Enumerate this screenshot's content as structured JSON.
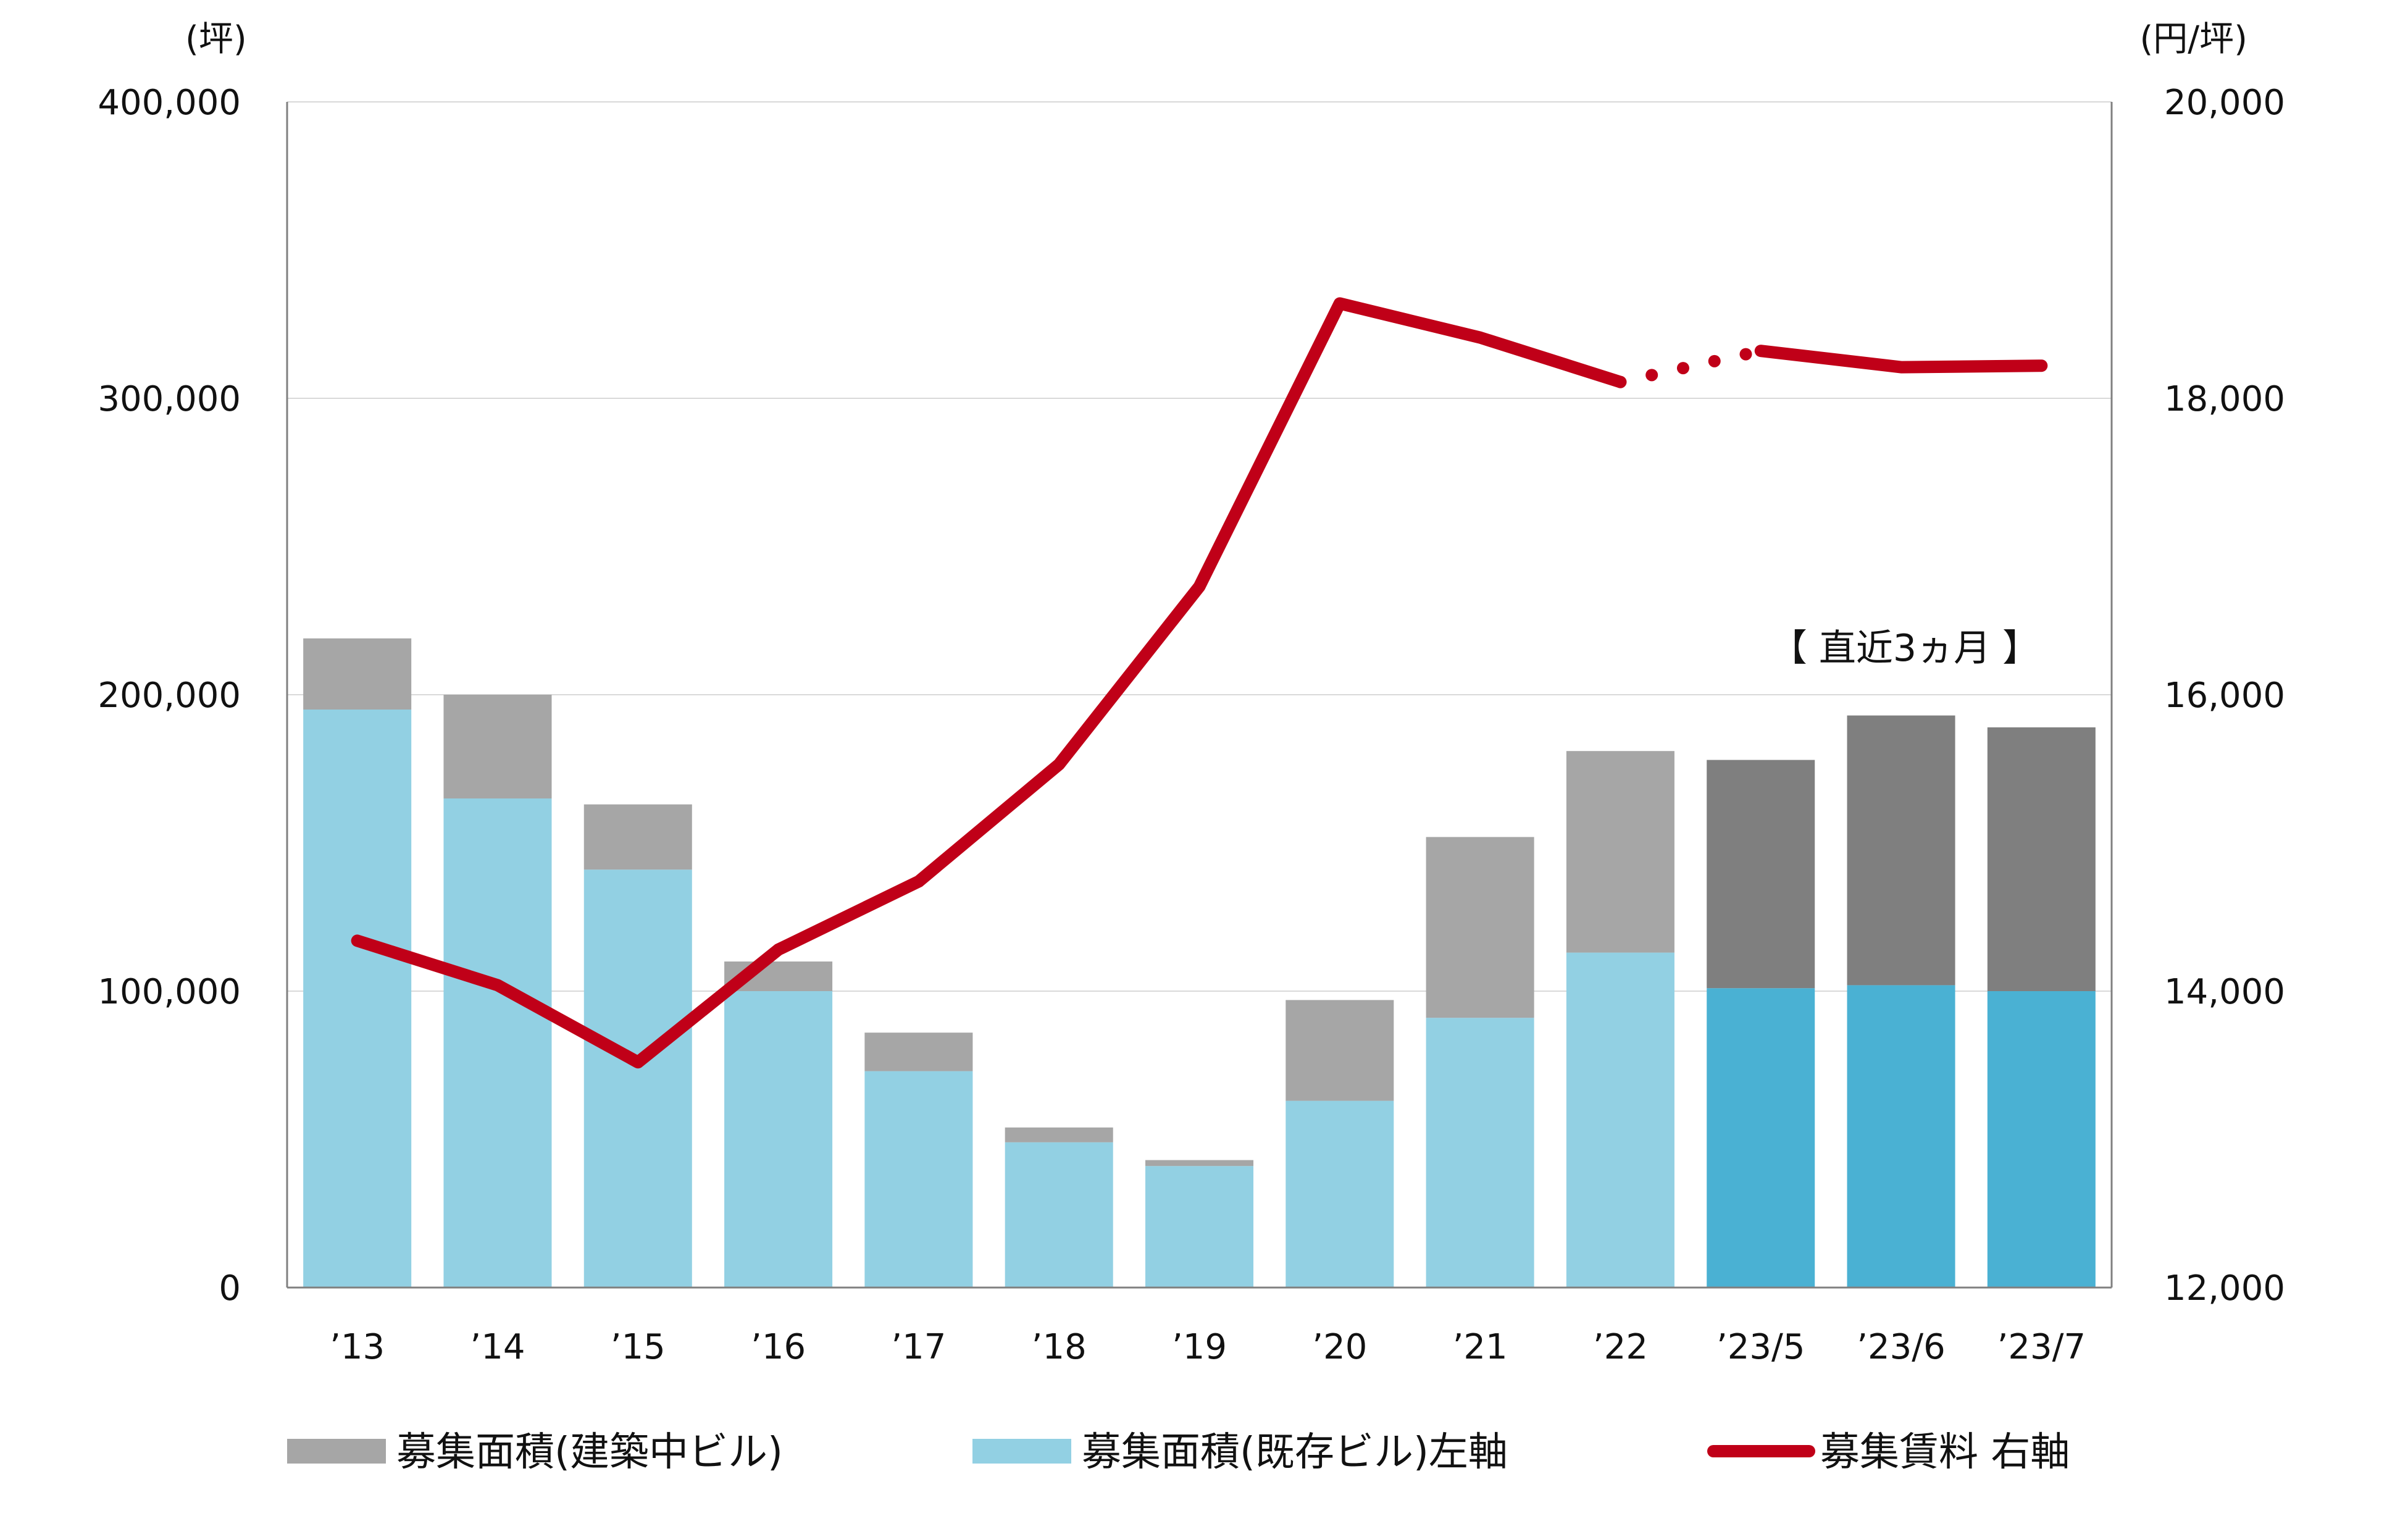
{
  "chart_data": {
    "type": "bar+line",
    "categories": [
      "’13",
      "’14",
      "’15",
      "’16",
      "’17",
      "’18",
      "’19",
      "’20",
      "’21",
      "’22",
      "’23/5",
      "’23/6",
      "’23/7"
    ],
    "series": [
      {
        "name": "募集面積(既存ビル)左軸",
        "type": "stacked-bar",
        "axis": "left",
        "values": [
          195000,
          165000,
          141000,
          100000,
          73000,
          49000,
          41000,
          63000,
          91000,
          113000,
          101000,
          102000,
          100000
        ]
      },
      {
        "name": "募集面積(建築中ビル)",
        "type": "stacked-bar",
        "axis": "left",
        "values": [
          24000,
          35000,
          22000,
          10000,
          13000,
          5000,
          2000,
          34000,
          61000,
          68000,
          77000,
          91000,
          89000
        ]
      },
      {
        "name": "募集賃料 右軸",
        "type": "line",
        "axis": "right",
        "values": [
          14340,
          14040,
          13520,
          14280,
          14740,
          15530,
          16730,
          18640,
          18410,
          18110,
          18320,
          18210,
          18220
        ]
      }
    ],
    "left_axis": {
      "unit": "(坪)",
      "min": 0,
      "max": 400000,
      "ticks": [
        "0",
        "100,000",
        "200,000",
        "300,000",
        "400,000"
      ]
    },
    "right_axis": {
      "unit": "(円/坪)",
      "min": 12000,
      "max": 20000,
      "ticks": [
        "12,000",
        "14,000",
        "16,000",
        "18,000",
        "20,000"
      ]
    },
    "annotation": "【 直近3ヵ月 】",
    "grid": true,
    "legend_position": "bottom",
    "colors": {
      "existing": "#92d0e3",
      "construction": "#a6a6a6",
      "existing_recent": "#4ab1d3",
      "construction_recent": "#7f7f7f",
      "rent_line": "#c00018",
      "grid": "#d9d9d9",
      "axis": "#808080"
    }
  },
  "legend": {
    "construction_label": "募集面積(建築中ビル)",
    "existing_label": "募集面積(既存ビル)左軸",
    "rent_label": "募集賃料 右軸"
  }
}
